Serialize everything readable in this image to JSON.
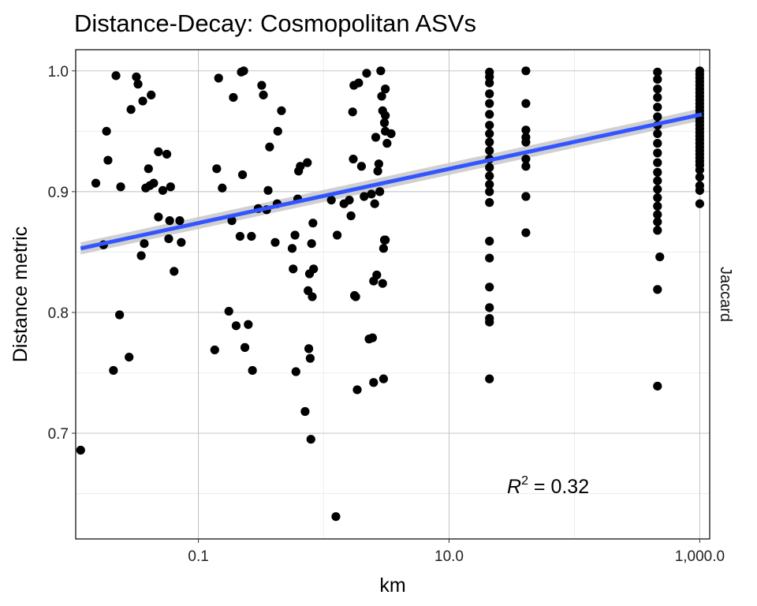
{
  "chart_data": {
    "type": "scatter",
    "title": "Distance-Decay: Cosmopolitan ASVs",
    "xlabel": "km",
    "ylabel": "Distance metric",
    "facet_label": "Jaccard",
    "x_scale": "log10",
    "xlim": [
      0.0105,
      1200
    ],
    "ylim": [
      0.6125,
      1.0175
    ],
    "x_ticks": [
      0.1,
      10,
      1000
    ],
    "x_tick_labels": [
      "0.1",
      "10.0",
      "1,000.0"
    ],
    "y_ticks": [
      0.7,
      0.8,
      0.9,
      1.0
    ],
    "y_tick_labels": [
      "0.7",
      "0.8",
      "0.9",
      "1.0"
    ],
    "grid": true,
    "annotation": {
      "prefix": "R",
      "superscript": "2",
      "suffix": " = 0.32"
    },
    "fit": {
      "x": [
        0.0115,
        1040
      ],
      "y": [
        0.853,
        0.964
      ],
      "ci": 0.005
    },
    "colors": {
      "points": "#000000",
      "fit_line": "#3355ff",
      "ci_band": "#c8c8c8"
    },
    "points": [
      [
        0.0115,
        0.686
      ],
      [
        0.0152,
        0.907
      ],
      [
        0.0175,
        0.856
      ],
      [
        0.0185,
        0.95
      ],
      [
        0.019,
        0.926
      ],
      [
        0.021,
        0.752
      ],
      [
        0.022,
        0.996
      ],
      [
        0.0235,
        0.798
      ],
      [
        0.024,
        0.904
      ],
      [
        0.028,
        0.763
      ],
      [
        0.029,
        0.968
      ],
      [
        0.032,
        0.995
      ],
      [
        0.033,
        0.989
      ],
      [
        0.035,
        0.847
      ],
      [
        0.036,
        0.975
      ],
      [
        0.037,
        0.857
      ],
      [
        0.038,
        0.903
      ],
      [
        0.04,
        0.919
      ],
      [
        0.041,
        0.905
      ],
      [
        0.042,
        0.98
      ],
      [
        0.044,
        0.907
      ],
      [
        0.048,
        0.879
      ],
      [
        0.048,
        0.933
      ],
      [
        0.052,
        0.901
      ],
      [
        0.056,
        0.931
      ],
      [
        0.058,
        0.861
      ],
      [
        0.059,
        0.876
      ],
      [
        0.06,
        0.904
      ],
      [
        0.064,
        0.834
      ],
      [
        0.071,
        0.876
      ],
      [
        0.073,
        0.858
      ],
      [
        0.135,
        0.769
      ],
      [
        0.14,
        0.919
      ],
      [
        0.145,
        0.994
      ],
      [
        0.155,
        0.903
      ],
      [
        0.175,
        0.801
      ],
      [
        0.185,
        0.876
      ],
      [
        0.19,
        0.978
      ],
      [
        0.2,
        0.789
      ],
      [
        0.215,
        0.863
      ],
      [
        0.22,
        0.999
      ],
      [
        0.225,
        0.914
      ],
      [
        0.23,
        1.0
      ],
      [
        0.235,
        0.771
      ],
      [
        0.25,
        0.79
      ],
      [
        0.265,
        0.863
      ],
      [
        0.27,
        0.752
      ],
      [
        0.3,
        0.886
      ],
      [
        0.32,
        0.988
      ],
      [
        0.33,
        0.98
      ],
      [
        0.35,
        0.885
      ],
      [
        0.36,
        0.901
      ],
      [
        0.37,
        0.937
      ],
      [
        0.41,
        0.858
      ],
      [
        0.425,
        0.89
      ],
      [
        0.43,
        0.95
      ],
      [
        0.46,
        0.967
      ],
      [
        0.56,
        0.853
      ],
      [
        0.57,
        0.836
      ],
      [
        0.59,
        0.864
      ],
      [
        0.6,
        0.751
      ],
      [
        0.62,
        0.894
      ],
      [
        0.63,
        0.917
      ],
      [
        0.65,
        0.921
      ],
      [
        0.71,
        0.718
      ],
      [
        0.74,
        0.924
      ],
      [
        0.75,
        0.818
      ],
      [
        0.76,
        0.77
      ],
      [
        0.77,
        0.832
      ],
      [
        0.78,
        0.762
      ],
      [
        0.79,
        0.695
      ],
      [
        0.8,
        0.857
      ],
      [
        0.81,
        0.813
      ],
      [
        0.82,
        0.874
      ],
      [
        0.83,
        0.836
      ],
      [
        1.15,
        0.893
      ],
      [
        1.25,
        0.631
      ],
      [
        1.28,
        0.864
      ],
      [
        1.45,
        0.89
      ],
      [
        1.6,
        0.893
      ],
      [
        1.65,
        0.88
      ],
      [
        1.7,
        0.966
      ],
      [
        1.72,
        0.927
      ],
      [
        1.74,
        0.988
      ],
      [
        1.76,
        0.814
      ],
      [
        1.8,
        0.813
      ],
      [
        1.85,
        0.736
      ],
      [
        1.9,
        0.99
      ],
      [
        2.0,
        0.921
      ],
      [
        2.1,
        0.896
      ],
      [
        2.2,
        0.998
      ],
      [
        2.3,
        0.778
      ],
      [
        2.4,
        0.898
      ],
      [
        2.45,
        0.779
      ],
      [
        2.5,
        0.826
      ],
      [
        2.5,
        0.742
      ],
      [
        2.55,
        0.89
      ],
      [
        2.6,
        0.945
      ],
      [
        2.65,
        0.831
      ],
      [
        2.7,
        0.917
      ],
      [
        2.75,
        0.923
      ],
      [
        2.8,
        0.9
      ],
      [
        2.85,
        1.0
      ],
      [
        2.9,
        0.979
      ],
      [
        2.95,
        0.967
      ],
      [
        2.95,
        0.824
      ],
      [
        3.0,
        0.853
      ],
      [
        3.0,
        0.745
      ],
      [
        3.05,
        0.86
      ],
      [
        3.05,
        0.957
      ],
      [
        3.1,
        0.95
      ],
      [
        3.1,
        0.963
      ],
      [
        3.1,
        0.86
      ],
      [
        3.1,
        0.985
      ],
      [
        3.2,
        0.94
      ],
      [
        3.45,
        0.948
      ],
      [
        21,
        0.999
      ],
      [
        21,
        0.995
      ],
      [
        21,
        0.99
      ],
      [
        21,
        0.981
      ],
      [
        21,
        0.973
      ],
      [
        21,
        0.964
      ],
      [
        21,
        0.955
      ],
      [
        21,
        0.948
      ],
      [
        21,
        0.941
      ],
      [
        21,
        0.934
      ],
      [
        21,
        0.927
      ],
      [
        21,
        0.92
      ],
      [
        21,
        0.913
      ],
      [
        21,
        0.906
      ],
      [
        21,
        0.9
      ],
      [
        21,
        0.891
      ],
      [
        21,
        0.859
      ],
      [
        21,
        0.845
      ],
      [
        21,
        0.821
      ],
      [
        21,
        0.804
      ],
      [
        21,
        0.795
      ],
      [
        21,
        0.792
      ],
      [
        21,
        0.745
      ],
      [
        41,
        1.0
      ],
      [
        41,
        0.973
      ],
      [
        41,
        0.951
      ],
      [
        41,
        0.945
      ],
      [
        41,
        0.941
      ],
      [
        41,
        0.927
      ],
      [
        41,
        0.921
      ],
      [
        41,
        0.896
      ],
      [
        41,
        0.866
      ],
      [
        460,
        0.999
      ],
      [
        460,
        0.993
      ],
      [
        460,
        0.985
      ],
      [
        460,
        0.978
      ],
      [
        460,
        0.97
      ],
      [
        460,
        0.962
      ],
      [
        460,
        0.955
      ],
      [
        460,
        0.948
      ],
      [
        460,
        0.94
      ],
      [
        460,
        0.932
      ],
      [
        460,
        0.924
      ],
      [
        460,
        0.916
      ],
      [
        460,
        0.909
      ],
      [
        460,
        0.902
      ],
      [
        460,
        0.895
      ],
      [
        460,
        0.888
      ],
      [
        460,
        0.881
      ],
      [
        460,
        0.875
      ],
      [
        460,
        0.868
      ],
      [
        480,
        0.846
      ],
      [
        460,
        0.819
      ],
      [
        460,
        0.739
      ],
      [
        1000,
        1.0
      ],
      [
        1000,
        0.997
      ],
      [
        1000,
        0.994
      ],
      [
        1000,
        0.991
      ],
      [
        1000,
        0.988
      ],
      [
        1000,
        0.985
      ],
      [
        1000,
        0.982
      ],
      [
        1000,
        0.979
      ],
      [
        1000,
        0.976
      ],
      [
        1000,
        0.973
      ],
      [
        1000,
        0.97
      ],
      [
        1000,
        0.967
      ],
      [
        1000,
        0.964
      ],
      [
        1000,
        0.961
      ],
      [
        1000,
        0.958
      ],
      [
        1000,
        0.955
      ],
      [
        1000,
        0.952
      ],
      [
        1000,
        0.949
      ],
      [
        1000,
        0.946
      ],
      [
        1000,
        0.943
      ],
      [
        1000,
        0.94
      ],
      [
        1000,
        0.937
      ],
      [
        1000,
        0.934
      ],
      [
        1000,
        0.931
      ],
      [
        1000,
        0.928
      ],
      [
        1000,
        0.925
      ],
      [
        1000,
        0.922
      ],
      [
        1000,
        0.918
      ],
      [
        1000,
        0.912
      ],
      [
        1000,
        0.905
      ],
      [
        1000,
        0.901
      ],
      [
        1000,
        0.89
      ]
    ]
  }
}
